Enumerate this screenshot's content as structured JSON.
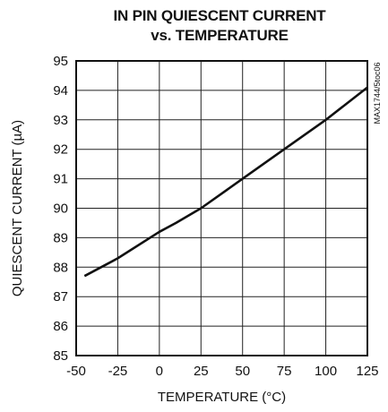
{
  "chart_data": {
    "type": "line",
    "title": [
      "IN PIN QUIESCENT CURRENT",
      "vs. TEMPERATURE"
    ],
    "xlabel": "TEMPERATURE (°C)",
    "ylabel": "QUIESCENT CURRENT (µA)",
    "figure_code": "MAX1744/5toc06",
    "xlim": [
      -50,
      125
    ],
    "ylim": [
      85,
      95
    ],
    "xticks": [
      -50,
      -25,
      0,
      25,
      50,
      75,
      100,
      125
    ],
    "yticks": [
      85,
      86,
      87,
      88,
      89,
      90,
      91,
      92,
      93,
      94,
      95
    ],
    "x_tick_labels": [
      "-50",
      "-25",
      "0",
      "25",
      "50",
      "75",
      "100",
      "125"
    ],
    "y_tick_labels": [
      "85",
      "86",
      "87",
      "88",
      "89",
      "90",
      "91",
      "92",
      "93",
      "94",
      "95"
    ],
    "grid": true,
    "series": [
      {
        "x": [
          -45,
          -25,
          0,
          10,
          25,
          50,
          75,
          100,
          125
        ],
        "y": [
          87.7,
          88.3,
          89.2,
          89.5,
          90.0,
          91.0,
          92.0,
          93.0,
          94.1
        ]
      }
    ]
  }
}
